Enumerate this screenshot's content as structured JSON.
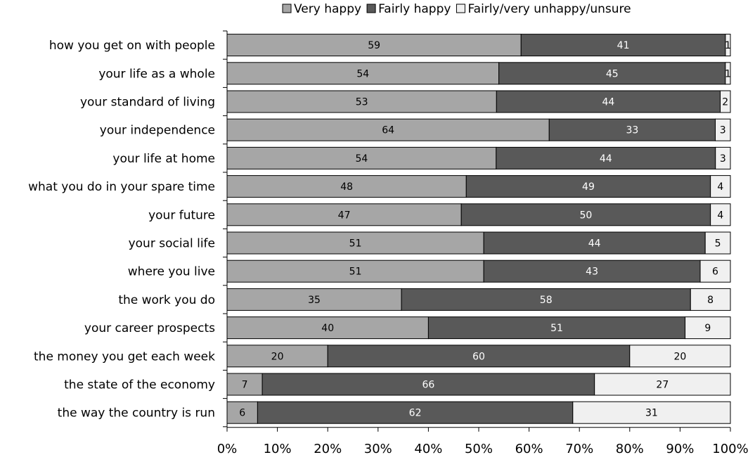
{
  "chart_data": {
    "type": "bar",
    "orientation": "horizontal",
    "stacked": true,
    "percent": true,
    "title": "",
    "xlabel": "",
    "ylabel": "",
    "xlim": [
      0,
      100
    ],
    "x_ticks": [
      "0%",
      "10%",
      "20%",
      "30%",
      "40%",
      "50%",
      "60%",
      "70%",
      "80%",
      "90%",
      "100%"
    ],
    "legend_position": "top",
    "grid": false,
    "categories": [
      "how you get on with people",
      "your life as a whole",
      "your standard of living",
      "your independence",
      "your life at home",
      "what you do in your spare time",
      "your future",
      "your social life",
      "where you live",
      "the work you do",
      "your career prospects",
      "the money you get each week",
      "the state of the economy",
      "the way the country is run"
    ],
    "series": [
      {
        "name": "Very happy",
        "color": "#a6a6a6",
        "label_color": "#000000",
        "values": [
          59,
          54,
          53,
          64,
          54,
          48,
          47,
          51,
          51,
          35,
          40,
          20,
          7,
          6
        ]
      },
      {
        "name": "Fairly happy",
        "color": "#595959",
        "label_color": "#ffffff",
        "values": [
          41,
          45,
          44,
          33,
          44,
          49,
          50,
          44,
          43,
          58,
          51,
          60,
          66,
          62
        ]
      },
      {
        "name": "Fairly/very unhappy/unsure",
        "color": "#f0f0f0",
        "label_color": "#000000",
        "values": [
          1,
          1,
          2,
          3,
          3,
          4,
          4,
          5,
          6,
          8,
          9,
          20,
          27,
          31
        ]
      }
    ]
  }
}
